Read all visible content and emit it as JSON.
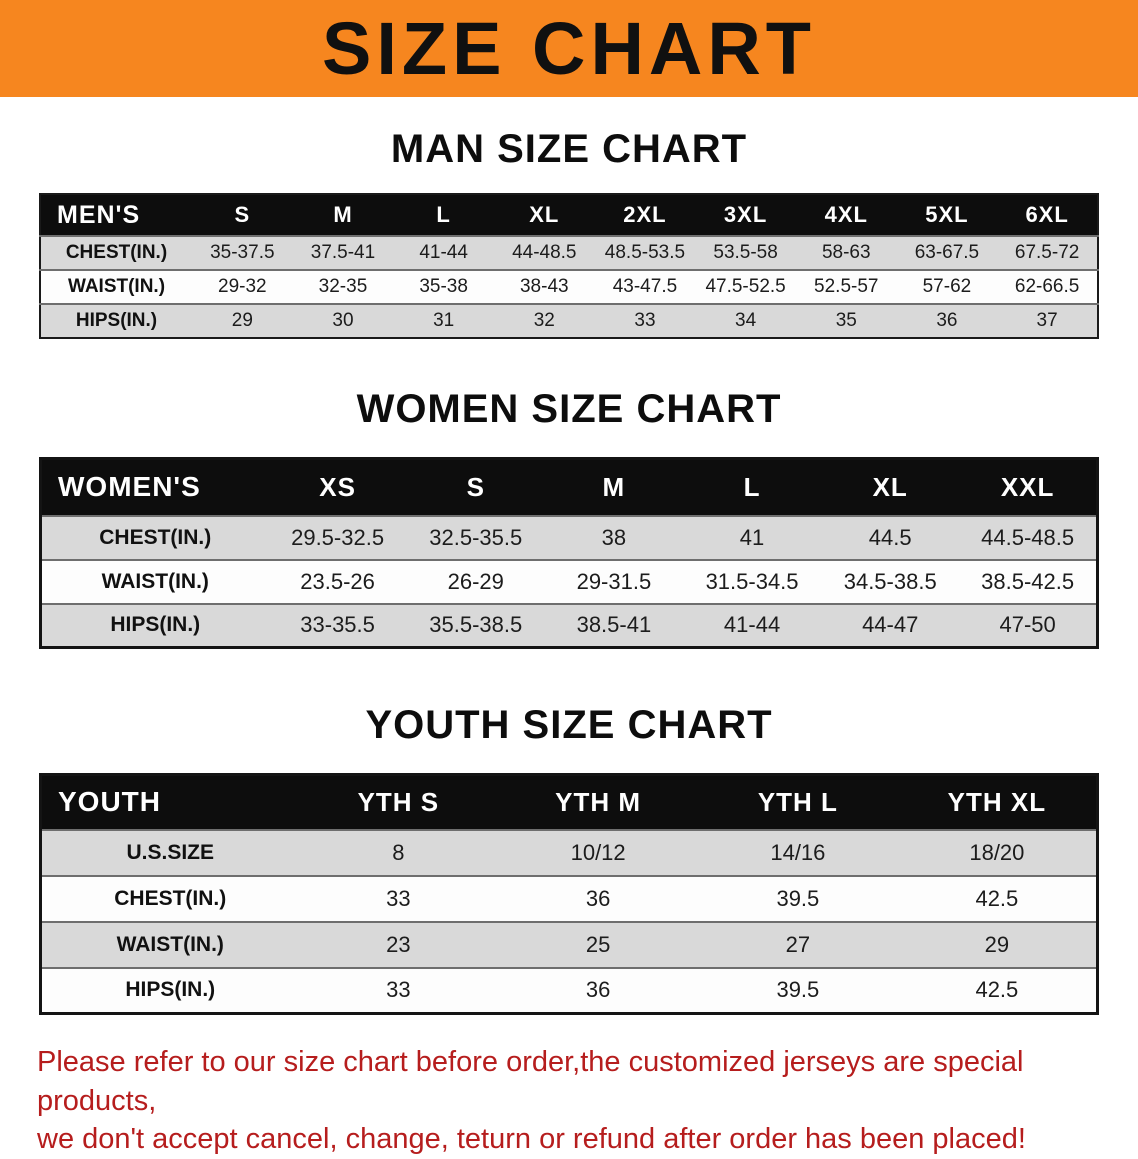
{
  "colors": {
    "banner_bg": "#f6861f",
    "table_header_bg": "#0d0d0d",
    "row_stripe": "#d9d9d9",
    "footer_text": "#b61d1d"
  },
  "banner": {
    "title": "SIZE CHART"
  },
  "sections": [
    {
      "heading": "MAN SIZE CHART",
      "table": {
        "label": "MEN'S",
        "columns": [
          "S",
          "M",
          "L",
          "XL",
          "2XL",
          "3XL",
          "4XL",
          "5XL",
          "6XL"
        ],
        "rows": [
          {
            "label": "CHEST(IN.)",
            "values": [
              "35-37.5",
              "37.5-41",
              "41-44",
              "44-48.5",
              "48.5-53.5",
              "53.5-58",
              "58-63",
              "63-67.5",
              "67.5-72"
            ]
          },
          {
            "label": "WAIST(IN.)",
            "values": [
              "29-32",
              "32-35",
              "35-38",
              "38-43",
              "43-47.5",
              "47.5-52.5",
              "52.5-57",
              "57-62",
              "62-66.5"
            ]
          },
          {
            "label": "HIPS(IN.)",
            "values": [
              "29",
              "30",
              "31",
              "32",
              "33",
              "34",
              "35",
              "36",
              "37"
            ]
          }
        ]
      }
    },
    {
      "heading": "WOMEN SIZE CHART",
      "table": {
        "label": "WOMEN'S",
        "columns": [
          "XS",
          "S",
          "M",
          "L",
          "XL",
          "XXL"
        ],
        "rows": [
          {
            "label": "CHEST(IN.)",
            "values": [
              "29.5-32.5",
              "32.5-35.5",
              "38",
              "41",
              "44.5",
              "44.5-48.5"
            ]
          },
          {
            "label": "WAIST(IN.)",
            "values": [
              "23.5-26",
              "26-29",
              "29-31.5",
              "31.5-34.5",
              "34.5-38.5",
              "38.5-42.5"
            ]
          },
          {
            "label": "HIPS(IN.)",
            "values": [
              "33-35.5",
              "35.5-38.5",
              "38.5-41",
              "41-44",
              "44-47",
              "47-50"
            ]
          }
        ]
      }
    },
    {
      "heading": "YOUTH SIZE CHART",
      "table": {
        "label": "YOUTH",
        "columns": [
          "YTH S",
          "YTH M",
          "YTH L",
          "YTH XL"
        ],
        "rows": [
          {
            "label": "U.S.SIZE",
            "values": [
              "8",
              "10/12",
              "14/16",
              "18/20"
            ]
          },
          {
            "label": "CHEST(IN.)",
            "values": [
              "33",
              "36",
              "39.5",
              "42.5"
            ]
          },
          {
            "label": "WAIST(IN.)",
            "values": [
              "23",
              "25",
              "27",
              "29"
            ]
          },
          {
            "label": "HIPS(IN.)",
            "values": [
              "33",
              "36",
              "39.5",
              "42.5"
            ]
          }
        ]
      }
    }
  ],
  "footer": {
    "line1": "Please refer to our size chart before order,the customized jerseys are special products,",
    "line2": "we don't accept cancel, change, teturn or refund after order has been placed!"
  }
}
